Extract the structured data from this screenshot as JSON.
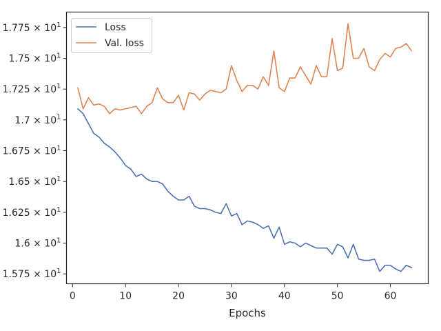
{
  "chart_data": {
    "type": "line",
    "title": "",
    "xlabel": "Epochs",
    "ylabel": "",
    "xlim": [
      -1.15,
      67.15
    ],
    "ylim": [
      15.67,
      17.875
    ],
    "grid": false,
    "legend_position": "top-left",
    "x_ticks": [
      0,
      10,
      20,
      30,
      40,
      50,
      60
    ],
    "x_tick_labels": [
      "0",
      "10",
      "20",
      "30",
      "40",
      "50",
      "60"
    ],
    "y_ticks": [
      15.75,
      16.0,
      16.25,
      16.5,
      16.75,
      17.0,
      17.25,
      17.5,
      17.75
    ],
    "y_tick_mantissas": [
      "1.575",
      "1.6",
      "1.625",
      "1.65",
      "1.675",
      "1.7",
      "1.725",
      "1.75",
      "1.775"
    ],
    "y_tick_separator": "×",
    "y_tick_base": "10",
    "y_tick_exponent": "1",
    "x": [
      1,
      2,
      3,
      4,
      5,
      6,
      7,
      8,
      9,
      10,
      11,
      12,
      13,
      14,
      15,
      16,
      17,
      18,
      19,
      20,
      21,
      22,
      23,
      24,
      25,
      26,
      27,
      28,
      29,
      30,
      31,
      32,
      33,
      34,
      35,
      36,
      37,
      38,
      39,
      40,
      41,
      42,
      43,
      44,
      45,
      46,
      47,
      48,
      49,
      50,
      51,
      52,
      53,
      54,
      55,
      56,
      57,
      58,
      59,
      60,
      61,
      62,
      63,
      64
    ],
    "series": [
      {
        "name": "Loss",
        "color": "#4c72b0",
        "values": [
          17.09,
          17.05,
          16.97,
          16.89,
          16.86,
          16.81,
          16.78,
          16.74,
          16.69,
          16.63,
          16.6,
          16.54,
          16.56,
          16.52,
          16.5,
          16.5,
          16.48,
          16.42,
          16.38,
          16.35,
          16.35,
          16.38,
          16.3,
          16.28,
          16.28,
          16.27,
          16.25,
          16.24,
          16.32,
          16.22,
          16.24,
          16.15,
          16.18,
          16.17,
          16.15,
          16.12,
          16.14,
          16.04,
          16.13,
          15.99,
          16.01,
          16.0,
          15.97,
          16.0,
          15.98,
          15.96,
          15.96,
          15.96,
          15.91,
          15.99,
          15.97,
          15.88,
          15.99,
          15.87,
          15.86,
          15.86,
          15.87,
          15.77,
          15.82,
          15.82,
          15.79,
          15.77,
          15.82,
          15.8
        ]
      },
      {
        "name": "Val. loss",
        "color": "#dd8452",
        "values": [
          17.26,
          17.09,
          17.18,
          17.12,
          17.13,
          17.11,
          17.05,
          17.09,
          17.08,
          17.09,
          17.1,
          17.11,
          17.05,
          17.11,
          17.14,
          17.26,
          17.17,
          17.14,
          17.14,
          17.2,
          17.08,
          17.22,
          17.21,
          17.16,
          17.21,
          17.24,
          17.23,
          17.22,
          17.25,
          17.44,
          17.32,
          17.23,
          17.28,
          17.28,
          17.25,
          17.35,
          17.28,
          17.56,
          17.26,
          17.23,
          17.34,
          17.34,
          17.43,
          17.36,
          17.29,
          17.44,
          17.35,
          17.35,
          17.66,
          17.4,
          17.42,
          17.78,
          17.5,
          17.5,
          17.58,
          17.43,
          17.4,
          17.49,
          17.54,
          17.51,
          17.58,
          17.59,
          17.62,
          17.56
        ]
      }
    ]
  }
}
